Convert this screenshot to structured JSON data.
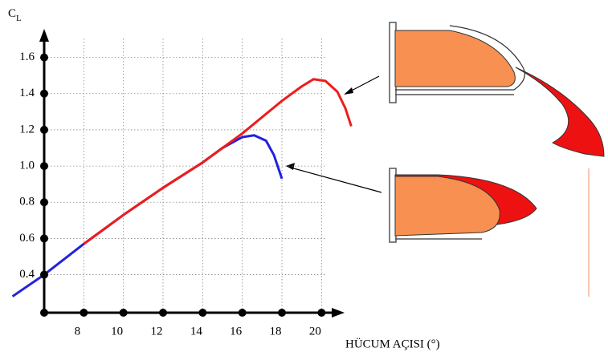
{
  "chart_data": {
    "type": "line",
    "y_label": "C",
    "y_label_sub": "L",
    "x_label": "HÜCUM AÇISI (°)",
    "xlim": [
      6,
      21
    ],
    "ylim": [
      0.19,
      1.74
    ],
    "xticks": [
      8,
      10,
      12,
      14,
      16,
      18,
      20
    ],
    "yticks": [
      {
        "value": 0.4,
        "label": "0.4"
      },
      {
        "value": 0.6,
        "label": "0.6"
      },
      {
        "value": 0.8,
        "label": "0.8"
      },
      {
        "value": 1.0,
        "label": "1.0"
      },
      {
        "value": 1.2,
        "label": "1.2"
      },
      {
        "value": 1.4,
        "label": "1.4"
      },
      {
        "value": 1.6,
        "label": "1.6"
      }
    ],
    "grid": true,
    "series": [
      {
        "color": "#2222dd",
        "x": [
          4.4,
          6,
          8,
          10,
          12,
          14,
          15,
          16,
          16.6,
          17.2,
          17.6,
          18
        ],
        "values": [
          0.28,
          0.4,
          0.57,
          0.73,
          0.88,
          1.02,
          1.1,
          1.16,
          1.17,
          1.14,
          1.06,
          0.93
        ]
      },
      {
        "color": "#ee1c1c",
        "x": [
          8,
          10,
          12,
          14,
          16,
          18,
          19,
          19.6,
          20.2,
          20.8,
          21.2,
          21.5
        ],
        "values": [
          0.57,
          0.73,
          0.88,
          1.02,
          1.18,
          1.36,
          1.44,
          1.48,
          1.47,
          1.41,
          1.32,
          1.22
        ]
      }
    ]
  }
}
